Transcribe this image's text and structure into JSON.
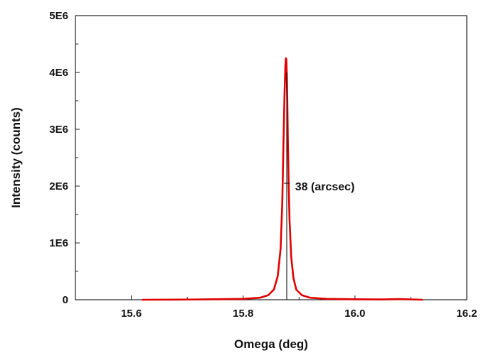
{
  "chart_data": {
    "type": "line",
    "title": "",
    "xlabel": "Omega (deg)",
    "ylabel": "Intensity (counts)",
    "xlim": [
      15.5,
      16.2
    ],
    "ylim": [
      0,
      5000000
    ],
    "x_ticks": [
      {
        "value": 15.6,
        "label": "15.6"
      },
      {
        "value": 15.8,
        "label": "15.8"
      },
      {
        "value": 16.0,
        "label": "16.0"
      },
      {
        "value": 16.2,
        "label": "16.2"
      }
    ],
    "y_ticks": [
      {
        "value": 0,
        "label": "0"
      },
      {
        "value": 1000000,
        "label": "1E6"
      },
      {
        "value": 2000000,
        "label": "2E6"
      },
      {
        "value": 3000000,
        "label": "3E6"
      },
      {
        "value": 4000000,
        "label": "4E6"
      },
      {
        "value": 5000000,
        "label": "5E6"
      }
    ],
    "grid": false,
    "legend": "none",
    "line_color": "#e00000",
    "series": [
      {
        "x": [
          15.62,
          15.7,
          15.75,
          15.8,
          15.83,
          15.845,
          15.855,
          15.862,
          15.867,
          15.87,
          15.872,
          15.874,
          15.8755,
          15.8765,
          15.8772,
          15.878,
          15.879,
          15.88,
          15.8815,
          15.883,
          15.886,
          15.89,
          15.895,
          15.905,
          15.92,
          15.95,
          16.0,
          16.05,
          16.08,
          16.12
        ],
        "y": [
          0,
          3000,
          8000,
          15000,
          35000,
          80000,
          180000,
          420000,
          900000,
          1700000,
          2700000,
          3600000,
          4100000,
          4250000,
          4230000,
          4000000,
          3500000,
          2800000,
          2000000,
          1400000,
          750000,
          380000,
          180000,
          80000,
          35000,
          15000,
          8000,
          5000,
          12000,
          0
        ]
      }
    ],
    "annotations": [
      {
        "type": "vline",
        "x": 15.878,
        "y_from": 0,
        "y_to": 4000000,
        "color": "#000000"
      },
      {
        "type": "marker",
        "x": 15.878,
        "y": 2050000,
        "color": "#000000"
      },
      {
        "type": "text",
        "x": 15.893,
        "y": 2000000,
        "text": "38 (arcsec)"
      }
    ]
  }
}
